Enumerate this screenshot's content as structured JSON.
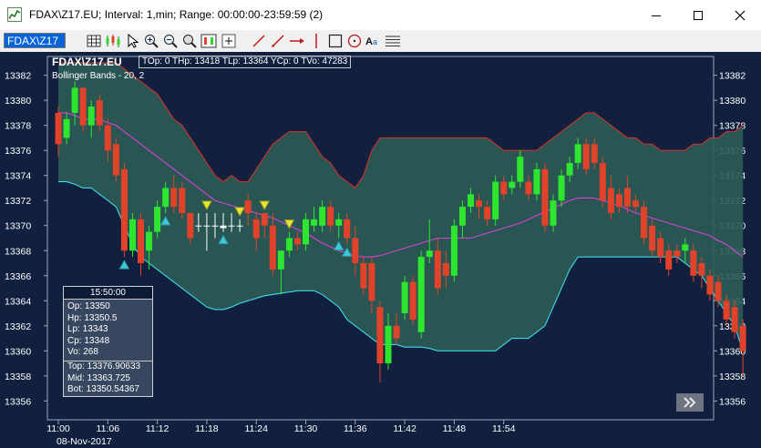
{
  "window": {
    "title": "FDAX\\Z17.EU; Interval: 1,min; Range: 00:00:00-23:59:59 (2)",
    "icons": [
      "chart-app-icon",
      "minimize-icon",
      "maximize-icon",
      "close-icon"
    ]
  },
  "toolbar": {
    "symbol_value": "FDAX\\Z17",
    "tools": [
      "grid-icon",
      "candles-icon",
      "pointer-icon",
      "zoom-in-icon",
      "zoom-out-icon",
      "zoom-box-icon",
      "studies-icon",
      "add-icon",
      "line-icon",
      "ray-icon",
      "arrow-line-icon",
      "vertical-line-icon",
      "rectangle-icon",
      "ellipse-icon",
      "text-icon",
      "fib-lines-icon"
    ]
  },
  "chart_overlay": {
    "symbol": "FDAX\\Z17.EU",
    "stats": "TOp: 0 THp: 13418 TLp: 13364 YCp: 0 TVo: 47283",
    "study": "Bollinger Bands - 20, 2"
  },
  "info_box": {
    "time": "15:50:00",
    "rows": [
      "Op: 13350",
      "Hp: 13350.5",
      "Lp: 13343",
      "Cp: 13348",
      "Vo: 268"
    ],
    "study_rows": [
      "Top: 13376.90633",
      "Mid: 13363.725",
      "Bot: 13350.54367"
    ]
  },
  "colors": {
    "background": "#10203e",
    "band_fill": "#2c5c55",
    "up": "#2ee62e",
    "down": "#e1432a",
    "upper_band": "#d0312d",
    "middle_band": "#d940d9",
    "lower_band": "#3fd8e8"
  },
  "chart_data": {
    "type": "candlestick",
    "title": "FDAX\\Z17.EU",
    "date_label": "08-Nov-2017",
    "x_tick_labels": [
      "11:00",
      "11:06",
      "11:12",
      "11:18",
      "11:24",
      "11:30",
      "11:36",
      "11:42",
      "11:48",
      "11:54"
    ],
    "y_tick_labels": [
      "13382",
      "13380",
      "13378",
      "13376",
      "13374",
      "13372",
      "13370",
      "13368",
      "13366",
      "13364",
      "13362",
      "13360",
      "13358",
      "13356"
    ],
    "ylim": [
      13354.5,
      13383.5
    ],
    "study": "Bollinger Bands - 20, 2",
    "candles": [
      [
        13379,
        13379.5,
        13375.5,
        13376.5
      ],
      [
        13377,
        13379,
        13376.5,
        13378.5
      ],
      [
        13379,
        13381.5,
        13378,
        13381
      ],
      [
        13381,
        13381,
        13377.5,
        13378
      ],
      [
        13378,
        13380,
        13377,
        13379.5
      ],
      [
        13380,
        13380.5,
        13377.5,
        13378
      ],
      [
        13378,
        13378.5,
        13375,
        13376
      ],
      [
        13376.5,
        13377,
        13373.5,
        13374
      ],
      [
        13374.5,
        13375,
        13367.5,
        13368
      ],
      [
        13368,
        13371,
        13367.5,
        13370.5
      ],
      [
        13370.5,
        13371,
        13366,
        13367
      ],
      [
        13368,
        13370,
        13366.5,
        13369.5
      ],
      [
        13369.5,
        13372,
        13369,
        13371.5
      ],
      [
        13371.5,
        13373.5,
        13371,
        13373
      ],
      [
        13373,
        13374,
        13371,
        13371.5
      ],
      [
        13373,
        13373.5,
        13370.5,
        13371
      ],
      [
        13371,
        13371,
        13368.5,
        13369
      ],
      [
        13370,
        13371,
        13369.5,
        13370
      ],
      [
        13370,
        13371,
        13368,
        13370
      ],
      [
        13370,
        13371,
        13369,
        13370
      ],
      [
        13370,
        13371,
        13369.5,
        13369.8
      ],
      [
        13370,
        13371,
        13369.5,
        13370
      ],
      [
        13370,
        13370.5,
        13369.5,
        13370
      ],
      [
        13372,
        13372.5,
        13370,
        13371
      ],
      [
        13370.5,
        13371,
        13368,
        13369
      ],
      [
        13371,
        13371,
        13369,
        13370
      ],
      [
        13370,
        13371,
        13366,
        13366.5
      ],
      [
        13366.5,
        13368,
        13364.5,
        13368
      ],
      [
        13368,
        13369.5,
        13367.5,
        13369
      ],
      [
        13369,
        13369.5,
        13368,
        13368.5
      ],
      [
        13368.5,
        13371,
        13368,
        13370.5
      ],
      [
        13370,
        13371.5,
        13369.5,
        13370.5
      ],
      [
        13370,
        13372,
        13369.5,
        13371.5
      ],
      [
        13371.5,
        13372,
        13369.5,
        13370
      ],
      [
        13370,
        13371,
        13369,
        13370.5
      ],
      [
        13370.5,
        13371,
        13368.5,
        13369
      ],
      [
        13369,
        13370,
        13366,
        13367
      ],
      [
        13367,
        13367.5,
        13364.5,
        13365
      ],
      [
        13367,
        13367.5,
        13363,
        13364
      ],
      [
        13363.5,
        13364,
        13357.5,
        13359
      ],
      [
        13359,
        13363,
        13358.5,
        13362
      ],
      [
        13362,
        13363,
        13360.5,
        13361
      ],
      [
        13363,
        13366,
        13362.5,
        13365.5
      ],
      [
        13365.5,
        13366,
        13362,
        13362.5
      ],
      [
        13361.5,
        13368,
        13361,
        13367.5
      ],
      [
        13367.5,
        13370.5,
        13367,
        13368
      ],
      [
        13368,
        13369,
        13364.5,
        13365
      ],
      [
        13367,
        13368,
        13365,
        13366
      ],
      [
        13366,
        13370.5,
        13365.5,
        13370
      ],
      [
        13370,
        13372,
        13369,
        13371.5
      ],
      [
        13371.5,
        13373,
        13371,
        13372.5
      ],
      [
        13372,
        13372.5,
        13370.5,
        13371.5
      ],
      [
        13371.5,
        13372,
        13370,
        13370.5
      ],
      [
        13370.5,
        13374,
        13370,
        13373.5
      ],
      [
        13373.5,
        13374,
        13372,
        13372.5
      ],
      [
        13373,
        13374,
        13372.5,
        13373.5
      ],
      [
        13373.5,
        13376,
        13373,
        13375.5
      ],
      [
        13373.5,
        13374,
        13372,
        13372.5
      ],
      [
        13372.5,
        13375,
        13372,
        13374.5
      ],
      [
        13374.5,
        13375,
        13369.5,
        13370
      ],
      [
        13370,
        13372.5,
        13369.5,
        13372
      ],
      [
        13372,
        13374.5,
        13371.5,
        13374
      ],
      [
        13374,
        13375.5,
        13373.5,
        13375
      ],
      [
        13375,
        13377,
        13374.5,
        13376.5
      ],
      [
        13376.5,
        13377,
        13374,
        13374.5
      ],
      [
        13376.5,
        13377,
        13374.5,
        13375
      ],
      [
        13375,
        13375.5,
        13371.5,
        13372
      ],
      [
        13373,
        13374,
        13370.5,
        13371
      ],
      [
        13372.5,
        13373,
        13371,
        13371.5
      ],
      [
        13373,
        13374,
        13371,
        13371.5
      ],
      [
        13372,
        13372.5,
        13371,
        13371.5
      ],
      [
        13371.5,
        13372,
        13368.5,
        13369
      ],
      [
        13370,
        13370.5,
        13367.5,
        13368
      ],
      [
        13369,
        13369.5,
        13367,
        13367.5
      ],
      [
        13368,
        13368.5,
        13366,
        13366.5
      ],
      [
        13368,
        13368.5,
        13367,
        13367.5
      ],
      [
        13368,
        13369,
        13367,
        13368.5
      ],
      [
        13368,
        13368.5,
        13365.5,
        13366
      ],
      [
        13367,
        13367.5,
        13365,
        13366
      ],
      [
        13366,
        13366.5,
        13364,
        13364.5
      ],
      [
        13365.5,
        13366,
        13363.5,
        13364
      ],
      [
        13364,
        13364.5,
        13362,
        13362.5
      ],
      [
        13363.5,
        13364,
        13361,
        13361.5
      ],
      [
        13362,
        13362.5,
        13358,
        13360
      ]
    ],
    "upper_band": [
      13383,
      13383,
      13383,
      13383,
      13383,
      13383,
      13383,
      13383,
      13382.5,
      13382,
      13381.5,
      13381,
      13380.5,
      13379.5,
      13378.5,
      13378,
      13377,
      13376,
      13375,
      13374,
      13373.5,
      13374,
      13373.5,
      13373.5,
      13374.5,
      13375.5,
      13376.5,
      13377,
      13377.5,
      13377.5,
      13377.5,
      13376.5,
      13375.5,
      13375,
      13374,
      13373.5,
      13373,
      13374,
      13376,
      13377,
      13377,
      13377,
      13377,
      13377,
      13377,
      13377,
      13377,
      13377,
      13377,
      13377,
      13377,
      13377,
      13377,
      13376.5,
      13376,
      13376,
      13376,
      13376,
      13376,
      13376.5,
      13377,
      13377.5,
      13378,
      13378.5,
      13379,
      13379,
      13378.5,
      13378,
      13377.5,
      13377,
      13377,
      13376.5,
      13376.5,
      13376,
      13376,
      13376,
      13376,
      13376.5,
      13376.5,
      13377,
      13377,
      13377.5,
      13377.5,
      13378
    ],
    "middle_band": [
      13379,
      13379,
      13378.8,
      13378.5,
      13378.5,
      13378.5,
      13378.2,
      13378,
      13377.5,
      13377,
      13376.5,
      13376,
      13375.5,
      13375,
      13374.5,
      13374,
      13373.5,
      13373,
      13372.5,
      13372,
      13371.8,
      13371.6,
      13371.4,
      13371.2,
      13371,
      13370.8,
      13370.6,
      13370.3,
      13370,
      13369.7,
      13369.4,
      13369,
      13368.6,
      13368.3,
      13368,
      13367.8,
      13367.6,
      13367.5,
      13367.5,
      13367.6,
      13367.8,
      13368,
      13368.2,
      13368.4,
      13368.6,
      13368.8,
      13369,
      13369,
      13369,
      13369,
      13369,
      13369.2,
      13369.4,
      13369.6,
      13369.8,
      13370,
      13370.2,
      13370.5,
      13370.8,
      13371.1,
      13371.4,
      13371.7,
      13372,
      13372.2,
      13372.2,
      13372.2,
      13372,
      13371.8,
      13371.6,
      13371.3,
      13371,
      13370.8,
      13370.6,
      13370.4,
      13370.2,
      13370,
      13369.8,
      13369.6,
      13369.4,
      13369.2,
      13368.8,
      13368.5,
      13368,
      13367.5
    ],
    "lower_band": [
      13373.5,
      13373.5,
      13373.3,
      13373,
      13373,
      13372.5,
      13372,
      13371.5,
      13370,
      13368.5,
      13367.5,
      13367,
      13366.5,
      13366,
      13365.5,
      13365,
      13364.5,
      13364,
      13363.5,
      13363.3,
      13363.3,
      13363.5,
      13363.8,
      13364,
      13364.2,
      13364.4,
      13364.5,
      13364.6,
      13364.7,
      13364.8,
      13364.8,
      13364.8,
      13364.5,
      13364,
      13363.5,
      13362.5,
      13362,
      13361.5,
      13361,
      13360.5,
      13360.5,
      13360.5,
      13360.3,
      13360.3,
      13360.3,
      13360.2,
      13360,
      13360,
      13360,
      13360,
      13360,
      13360,
      13360,
      13360,
      13360.5,
      13361,
      13361,
      13361,
      13361.5,
      13362,
      13363.5,
      13365,
      13366.5,
      13367.5,
      13367.5,
      13367.5,
      13367.5,
      13367.5,
      13367.5,
      13367.5,
      13367.5,
      13367.5,
      13367.5,
      13367.5,
      13367.5,
      13367.5,
      13367,
      13366.5,
      13366,
      13365,
      13364,
      13363,
      13362,
      13360
    ],
    "markers": [
      {
        "type": "buy",
        "index": 8
      },
      {
        "type": "buy",
        "index": 13
      },
      {
        "type": "buy",
        "index": 20
      },
      {
        "type": "buy",
        "index": 34
      },
      {
        "type": "buy",
        "index": 35
      },
      {
        "type": "sell",
        "index": 18
      },
      {
        "type": "sell",
        "index": 22
      },
      {
        "type": "sell",
        "index": 25
      },
      {
        "type": "sell",
        "index": 28
      }
    ]
  }
}
